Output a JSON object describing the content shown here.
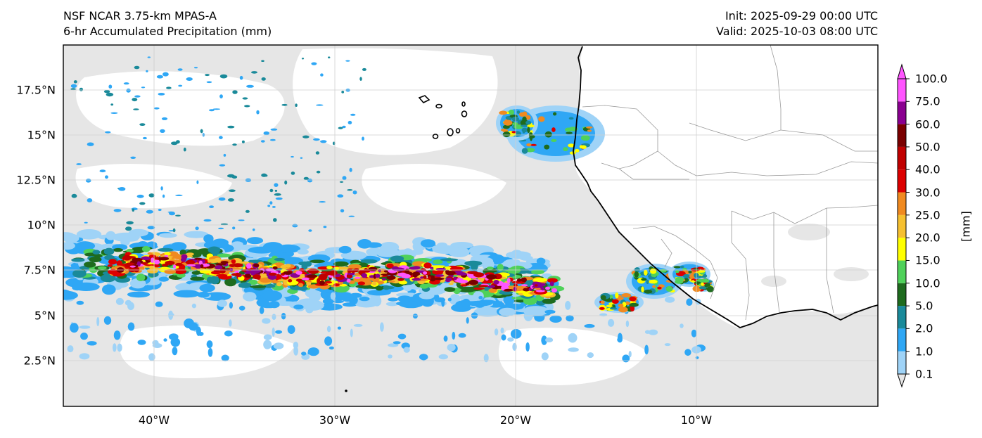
{
  "header": {
    "model": "NSF NCAR 3.75-km MPAS-A",
    "field": "6-hr Accumulated Precipitation (mm)",
    "init": "Init: 2025-09-29 00:00 UTC",
    "valid": "Valid: 2025-10-03 08:00 UTC"
  },
  "axes": {
    "lat_labels": [
      "17.5°N",
      "15°N",
      "12.5°N",
      "10°N",
      "7.5°N",
      "5°N",
      "2.5°N"
    ],
    "lon_labels": [
      "40°W",
      "30°W",
      "20°W",
      "10°W"
    ],
    "lon_range": [
      -45.6,
      -0.5
    ],
    "lat_range": [
      0,
      19.9
    ]
  },
  "colorbar": {
    "unit": "[mm]",
    "levels": [
      "0.1",
      "1.0",
      "2.0",
      "5.0",
      "10.0",
      "15.0",
      "20.0",
      "25.0",
      "30.0",
      "40.0",
      "50.0",
      "60.0",
      "75.0",
      "100.0"
    ],
    "colors": [
      "#e6e6e6",
      "#9fd3f7",
      "#2fa7f5",
      "#1a8a9a",
      "#1e6b1e",
      "#4fd15a",
      "#ffff00",
      "#f6c030",
      "#f08a20",
      "#dc0000",
      "#c00000",
      "#7a0000",
      "#8a0090",
      "#ff55ff"
    ],
    "land_fill": "#ffffff",
    "coast_color": "#000000",
    "border_color": "#9a9a9a"
  }
}
